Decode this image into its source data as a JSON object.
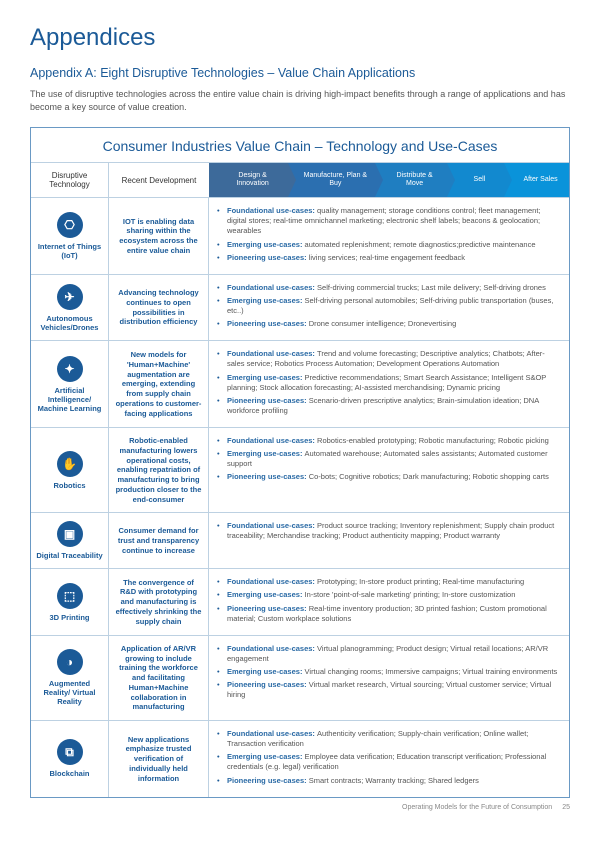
{
  "page": {
    "title": "Appendices",
    "subtitle": "Appendix A: Eight Disruptive Technologies – Value Chain Applications",
    "intro": "The use of disruptive technologies across the entire value chain is driving high-impact benefits through a range of applications and has become a key source of value creation.",
    "footer_text": "Operating Models for the Future of Consumption",
    "footer_page": "25"
  },
  "colors": {
    "primary": "#1b5a97",
    "border": "#bdd1e2",
    "stage_bg": [
      "#3d6a9a",
      "#2b6fb0",
      "#1f7ec1",
      "#1289cf",
      "#0a93da"
    ]
  },
  "table": {
    "banner": "Consumer Industries Value Chain – Technology and Use-Cases",
    "col1": "Disruptive Technology",
    "col2": "Recent Development",
    "stages": [
      "Design & Innovation",
      "Manufacture, Plan & Buy",
      "Distribute & Move",
      "Sell",
      "After Sales"
    ]
  },
  "labels": {
    "foundational": "Foundational use-cases:",
    "emerging": "Emerging use-cases:",
    "pioneering": "Pioneering use-cases:"
  },
  "rows": [
    {
      "tech": "Internet of Things (IoT)",
      "icon": "⎔",
      "dev": "IOT is enabling data sharing within the ecosystem across the entire value chain",
      "foundational": "quality management; storage conditions control; fleet management; digital stores; real-time omnichannel marketing; electronic shelf labels; beacons & geolocation; wearables",
      "emerging": "automated replenishment; remote diagnostics;predictive maintenance",
      "pioneering": "living services; real-time engagement feedback"
    },
    {
      "tech": "Autonomous Vehicles/Drones",
      "icon": "✈",
      "dev": "Advancing technology continues to open possibilities in distribution efficiency",
      "foundational": "Self-driving commercial trucks; Last mile delivery; Self-driving drones",
      "emerging": "Self-driving personal automobiles; Self-driving public transportation (buses, etc..)",
      "pioneering": "Drone consumer intelligence; Dronevertising"
    },
    {
      "tech": "Artificial Intelligence/ Machine Learning",
      "icon": "✦",
      "dev": "New models for 'Human+Machine' augmentation are emerging, extending from supply chain operations to customer-facing applications",
      "foundational": "Trend and volume forecasting; Descriptive analytics; Chatbots; After-sales service; Robotics Process Automation; Development Operations Automation",
      "emerging": "Predictive recommendations; Smart Search Assistance; Intelligent S&OP planning; Stock allocation forecasting; AI-assisted merchandising; Dynamic pricing",
      "pioneering": "Scenario-driven prescriptive analytics; Brain-simulation ideation; DNA workforce profiling"
    },
    {
      "tech": "Robotics",
      "icon": "✋",
      "dev": "Robotic-enabled manufacturing lowers operational costs, enabling repatriation of manufacturing to bring production closer to the end-consumer",
      "foundational": "Robotics-enabled prototyping; Robotic manufacturing; Robotic picking",
      "emerging": "Automated warehouse; Automated sales assistants; Automated customer support",
      "pioneering": "Co-bots; Cognitive robotics; Dark manufacturing; Robotic shopping carts"
    },
    {
      "tech": "Digital Traceability",
      "icon": "▣",
      "dev": "Consumer demand for trust and transparency continue to increase",
      "foundational": "Product source tracking; Inventory replenishment; Supply chain product traceability; Merchandise tracking; Product authenticity mapping; Product warranty",
      "emerging": "",
      "pioneering": ""
    },
    {
      "tech": "3D Printing",
      "icon": "⬚",
      "dev": "The convergence of R&D with prototyping and manufacturing is effectively shrinking the supply chain",
      "foundational": "Prototyping; In-store product printing; Real-time manufacturing",
      "emerging": "In-store 'point-of-sale marketing' printing; In-store customization",
      "pioneering": "Real-time inventory production; 3D printed fashion; Custom promotional material; Custom workplace solutions"
    },
    {
      "tech": "Augmented Reality/ Virtual Reality",
      "icon": "◑",
      "dev": "Application of AR/VR growing to include training the workforce and facilitating Human+Machine collaboration in manufacturing",
      "foundational": "Virtual planogramming; Product design; Virtual retail locations; AR/VR engagement",
      "emerging": "Virtual changing rooms; Immersive campaigns; Virtual training environments",
      "pioneering": "Virtual market research, Virtual sourcing; Virtual customer service; Virtual hiring"
    },
    {
      "tech": "Blockchain",
      "icon": "⧉",
      "dev": "New applications emphasize trusted verification of individually held information",
      "foundational": "Authenticity verification; Supply-chain verification; Online wallet; Transaction verification",
      "emerging": "Employee data verification; Education transcript verification; Professional credentials (e.g. legal) verification",
      "pioneering": "Smart contracts; Warranty tracking; Shared ledgers"
    }
  ]
}
